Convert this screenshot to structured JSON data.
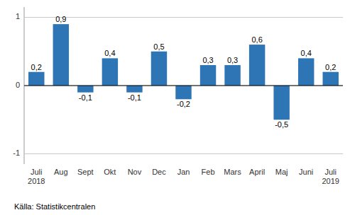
{
  "chart_data": {
    "type": "bar",
    "categories": [
      "Juli\n2018",
      "Aug",
      "Sept",
      "Okt",
      "Nov",
      "Dec",
      "Jan",
      "Feb",
      "Mars",
      "April",
      "Maj",
      "Juni",
      "Juli\n2019"
    ],
    "values": [
      0.2,
      0.9,
      -0.1,
      0.4,
      -0.1,
      0.5,
      -0.2,
      0.3,
      0.3,
      0.6,
      -0.5,
      0.4,
      0.2
    ],
    "value_labels": [
      "0,2",
      "0,9",
      "-0,1",
      "0,4",
      "-0,1",
      "0,5",
      "-0,2",
      "0,3",
      "0,3",
      "0,6",
      "-0,5",
      "0,4",
      "0,2"
    ],
    "data_labels": true,
    "color": "#2E75B6",
    "ylim": [
      -1.15,
      1.15
    ],
    "yticks": [
      -1,
      0,
      1
    ],
    "grid": true,
    "source": "Källa: Statistikcentralen"
  }
}
